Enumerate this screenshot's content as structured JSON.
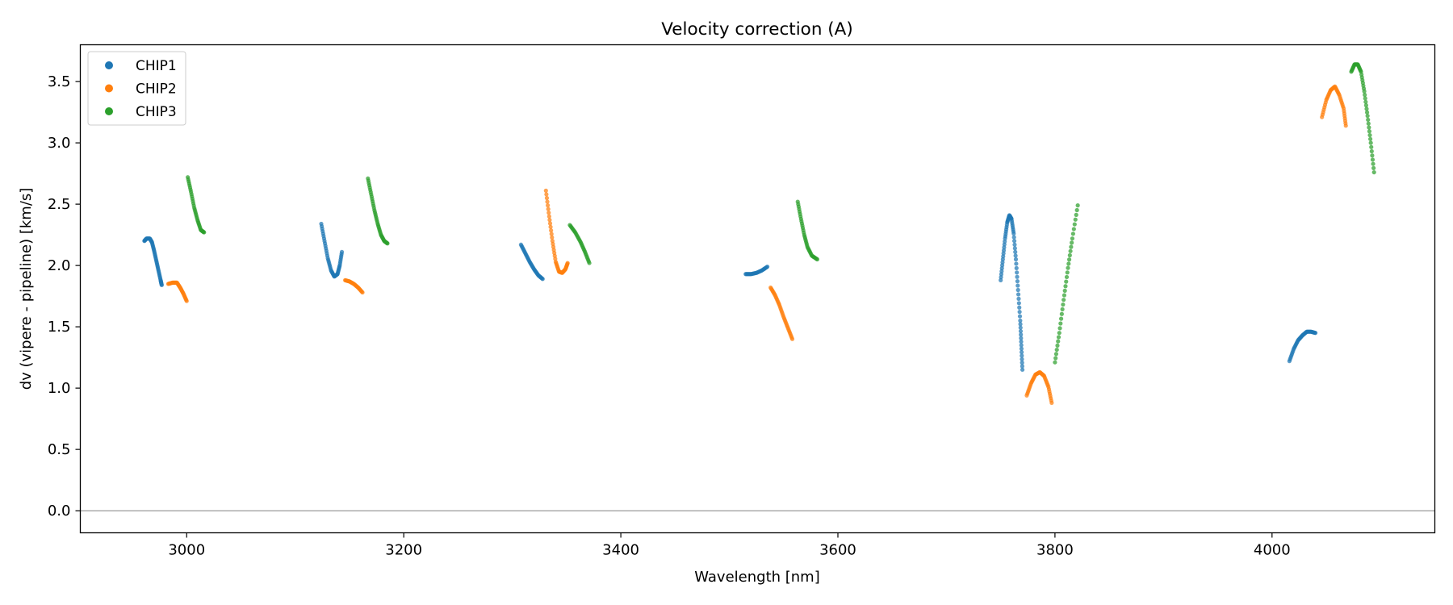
{
  "chart_data": {
    "type": "scatter",
    "title": "Velocity correction (A)",
    "xlabel": "Wavelength [nm]",
    "ylabel": "dv (vipere - pipeline) [km/s]",
    "xlim": [
      2902,
      4150
    ],
    "ylim": [
      -0.18,
      3.8
    ],
    "xticks": [
      3000,
      3200,
      3400,
      3600,
      3800,
      4000
    ],
    "yticks": [
      0.0,
      0.5,
      1.0,
      1.5,
      2.0,
      2.5,
      3.0,
      3.5
    ],
    "xtick_labels": [
      "3000",
      "3200",
      "3400",
      "3600",
      "3800",
      "4000"
    ],
    "ytick_labels": [
      "0.0",
      "0.5",
      "1.0",
      "1.5",
      "2.0",
      "2.5",
      "3.0",
      "3.5"
    ],
    "hline": 0.0,
    "grid": false,
    "legend_position": "top-left",
    "series": [
      {
        "name": "CHIP1",
        "color": "#1f77b4",
        "segments": [
          [
            [
              2961,
              2.2
            ],
            [
              2963,
              2.22
            ],
            [
              2966,
              2.22
            ],
            [
              2968,
              2.19
            ],
            [
              2970,
              2.12
            ],
            [
              2972,
              2.04
            ],
            [
              2974,
              1.96
            ],
            [
              2976,
              1.88
            ],
            [
              2977,
              1.84
            ]
          ],
          [
            [
              3124,
              2.34
            ],
            [
              3127,
              2.2
            ],
            [
              3130,
              2.06
            ],
            [
              3133,
              1.96
            ],
            [
              3136,
              1.91
            ],
            [
              3139,
              1.93
            ],
            [
              3141,
              2.0
            ],
            [
              3143,
              2.11
            ]
          ],
          [
            [
              3308,
              2.17
            ],
            [
              3312,
              2.1
            ],
            [
              3316,
              2.03
            ],
            [
              3320,
              1.97
            ],
            [
              3324,
              1.92
            ],
            [
              3328,
              1.89
            ]
          ],
          [
            [
              3515,
              1.93
            ],
            [
              3520,
              1.93
            ],
            [
              3525,
              1.94
            ],
            [
              3530,
              1.96
            ],
            [
              3535,
              1.99
            ]
          ],
          [
            [
              3750,
              1.88
            ],
            [
              3752,
              2.05
            ],
            [
              3754,
              2.22
            ],
            [
              3756,
              2.35
            ],
            [
              3758,
              2.41
            ],
            [
              3760,
              2.38
            ],
            [
              3762,
              2.26
            ],
            [
              3764,
              2.05
            ],
            [
              3766,
              1.8
            ],
            [
              3768,
              1.55
            ],
            [
              3769,
              1.35
            ],
            [
              3770,
              1.15
            ]
          ],
          [
            [
              4016,
              1.22
            ],
            [
              4020,
              1.32
            ],
            [
              4024,
              1.39
            ],
            [
              4028,
              1.43
            ],
            [
              4032,
              1.46
            ],
            [
              4036,
              1.46
            ],
            [
              4040,
              1.45
            ]
          ]
        ]
      },
      {
        "name": "CHIP2",
        "color": "#ff7f0e",
        "segments": [
          [
            [
              2983,
              1.85
            ],
            [
              2987,
              1.86
            ],
            [
              2991,
              1.86
            ],
            [
              2994,
              1.82
            ],
            [
              2997,
              1.77
            ],
            [
              3000,
              1.71
            ]
          ],
          [
            [
              3146,
              1.88
            ],
            [
              3150,
              1.87
            ],
            [
              3154,
              1.85
            ],
            [
              3158,
              1.82
            ],
            [
              3162,
              1.78
            ]
          ],
          [
            [
              3331,
              2.61
            ],
            [
              3334,
              2.4
            ],
            [
              3337,
              2.2
            ],
            [
              3340,
              2.03
            ],
            [
              3343,
              1.95
            ],
            [
              3346,
              1.94
            ],
            [
              3349,
              1.97
            ],
            [
              3351,
              2.02
            ]
          ],
          [
            [
              3538,
              1.82
            ],
            [
              3542,
              1.76
            ],
            [
              3546,
              1.68
            ],
            [
              3550,
              1.58
            ],
            [
              3554,
              1.49
            ],
            [
              3558,
              1.4
            ]
          ],
          [
            [
              3774,
              0.94
            ],
            [
              3778,
              1.04
            ],
            [
              3782,
              1.11
            ],
            [
              3786,
              1.13
            ],
            [
              3790,
              1.1
            ],
            [
              3794,
              1.01
            ],
            [
              3797,
              0.88
            ]
          ],
          [
            [
              4046,
              3.21
            ],
            [
              4050,
              3.35
            ],
            [
              4054,
              3.43
            ],
            [
              4058,
              3.46
            ],
            [
              4062,
              3.39
            ],
            [
              4066,
              3.28
            ],
            [
              4068,
              3.14
            ]
          ]
        ]
      },
      {
        "name": "CHIP3",
        "color": "#2ca02c",
        "segments": [
          [
            [
              3001,
              2.72
            ],
            [
              3004,
              2.6
            ],
            [
              3007,
              2.47
            ],
            [
              3010,
              2.37
            ],
            [
              3013,
              2.29
            ],
            [
              3016,
              2.27
            ]
          ],
          [
            [
              3167,
              2.71
            ],
            [
              3170,
              2.58
            ],
            [
              3173,
              2.45
            ],
            [
              3176,
              2.34
            ],
            [
              3179,
              2.25
            ],
            [
              3182,
              2.2
            ],
            [
              3185,
              2.18
            ]
          ],
          [
            [
              3353,
              2.33
            ],
            [
              3358,
              2.27
            ],
            [
              3363,
              2.19
            ],
            [
              3367,
              2.11
            ],
            [
              3371,
              2.02
            ]
          ],
          [
            [
              3563,
              2.52
            ],
            [
              3566,
              2.38
            ],
            [
              3569,
              2.25
            ],
            [
              3572,
              2.15
            ],
            [
              3576,
              2.08
            ],
            [
              3581,
              2.05
            ]
          ],
          [
            [
              3800,
              1.21
            ],
            [
              3804,
              1.45
            ],
            [
              3808,
              1.72
            ],
            [
              3812,
              1.98
            ],
            [
              3816,
              2.22
            ],
            [
              3821,
              2.49
            ]
          ],
          [
            [
              4073,
              3.58
            ],
            [
              4076,
              3.64
            ],
            [
              4079,
              3.64
            ],
            [
              4082,
              3.58
            ],
            [
              4085,
              3.42
            ],
            [
              4088,
              3.22
            ],
            [
              4091,
              3.0
            ],
            [
              4094,
              2.76
            ]
          ]
        ]
      }
    ]
  }
}
